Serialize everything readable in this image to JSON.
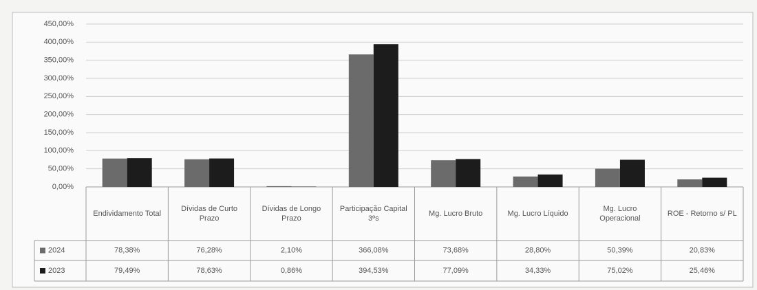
{
  "chart_data": {
    "type": "bar",
    "categories": [
      "Endividamento Total",
      "Dívidas de Curto Prazo",
      "Dívidas de Longo Prazo",
      "Participação Capital 3ºs",
      "Mg. Lucro Bruto",
      "Mg. Lucro Líquido",
      "Mg. Lucro Operacional",
      "ROE - Retorno s/ PL"
    ],
    "series": [
      {
        "name": "2024",
        "color": "#6b6b6b",
        "values": [
          78.38,
          76.28,
          2.1,
          366.08,
          73.68,
          28.8,
          50.39,
          20.83
        ],
        "value_labels": [
          "78,38%",
          "76,28%",
          "2,10%",
          "366,08%",
          "73,68%",
          "28,80%",
          "50,39%",
          "20,83%"
        ]
      },
      {
        "name": "2023",
        "color": "#1c1c1c",
        "values": [
          79.49,
          78.63,
          0.86,
          394.53,
          77.09,
          34.33,
          75.02,
          25.46
        ],
        "value_labels": [
          "79,49%",
          "78,63%",
          "0,86%",
          "394,53%",
          "77,09%",
          "34,33%",
          "75,02%",
          "25,46%"
        ]
      }
    ],
    "ylim": [
      0,
      450
    ],
    "yticks": [
      {
        "value": 0,
        "label": "0,00%"
      },
      {
        "value": 50,
        "label": "50,00%"
      },
      {
        "value": 100,
        "label": "100,00%"
      },
      {
        "value": 150,
        "label": "150,00%"
      },
      {
        "value": 200,
        "label": "200,00%"
      },
      {
        "value": 250,
        "label": "250,00%"
      },
      {
        "value": 300,
        "label": "300,00%"
      },
      {
        "value": 350,
        "label": "350,00%"
      },
      {
        "value": 400,
        "label": "400,00%"
      },
      {
        "value": 450,
        "label": "450,00%"
      }
    ],
    "grid": true
  }
}
